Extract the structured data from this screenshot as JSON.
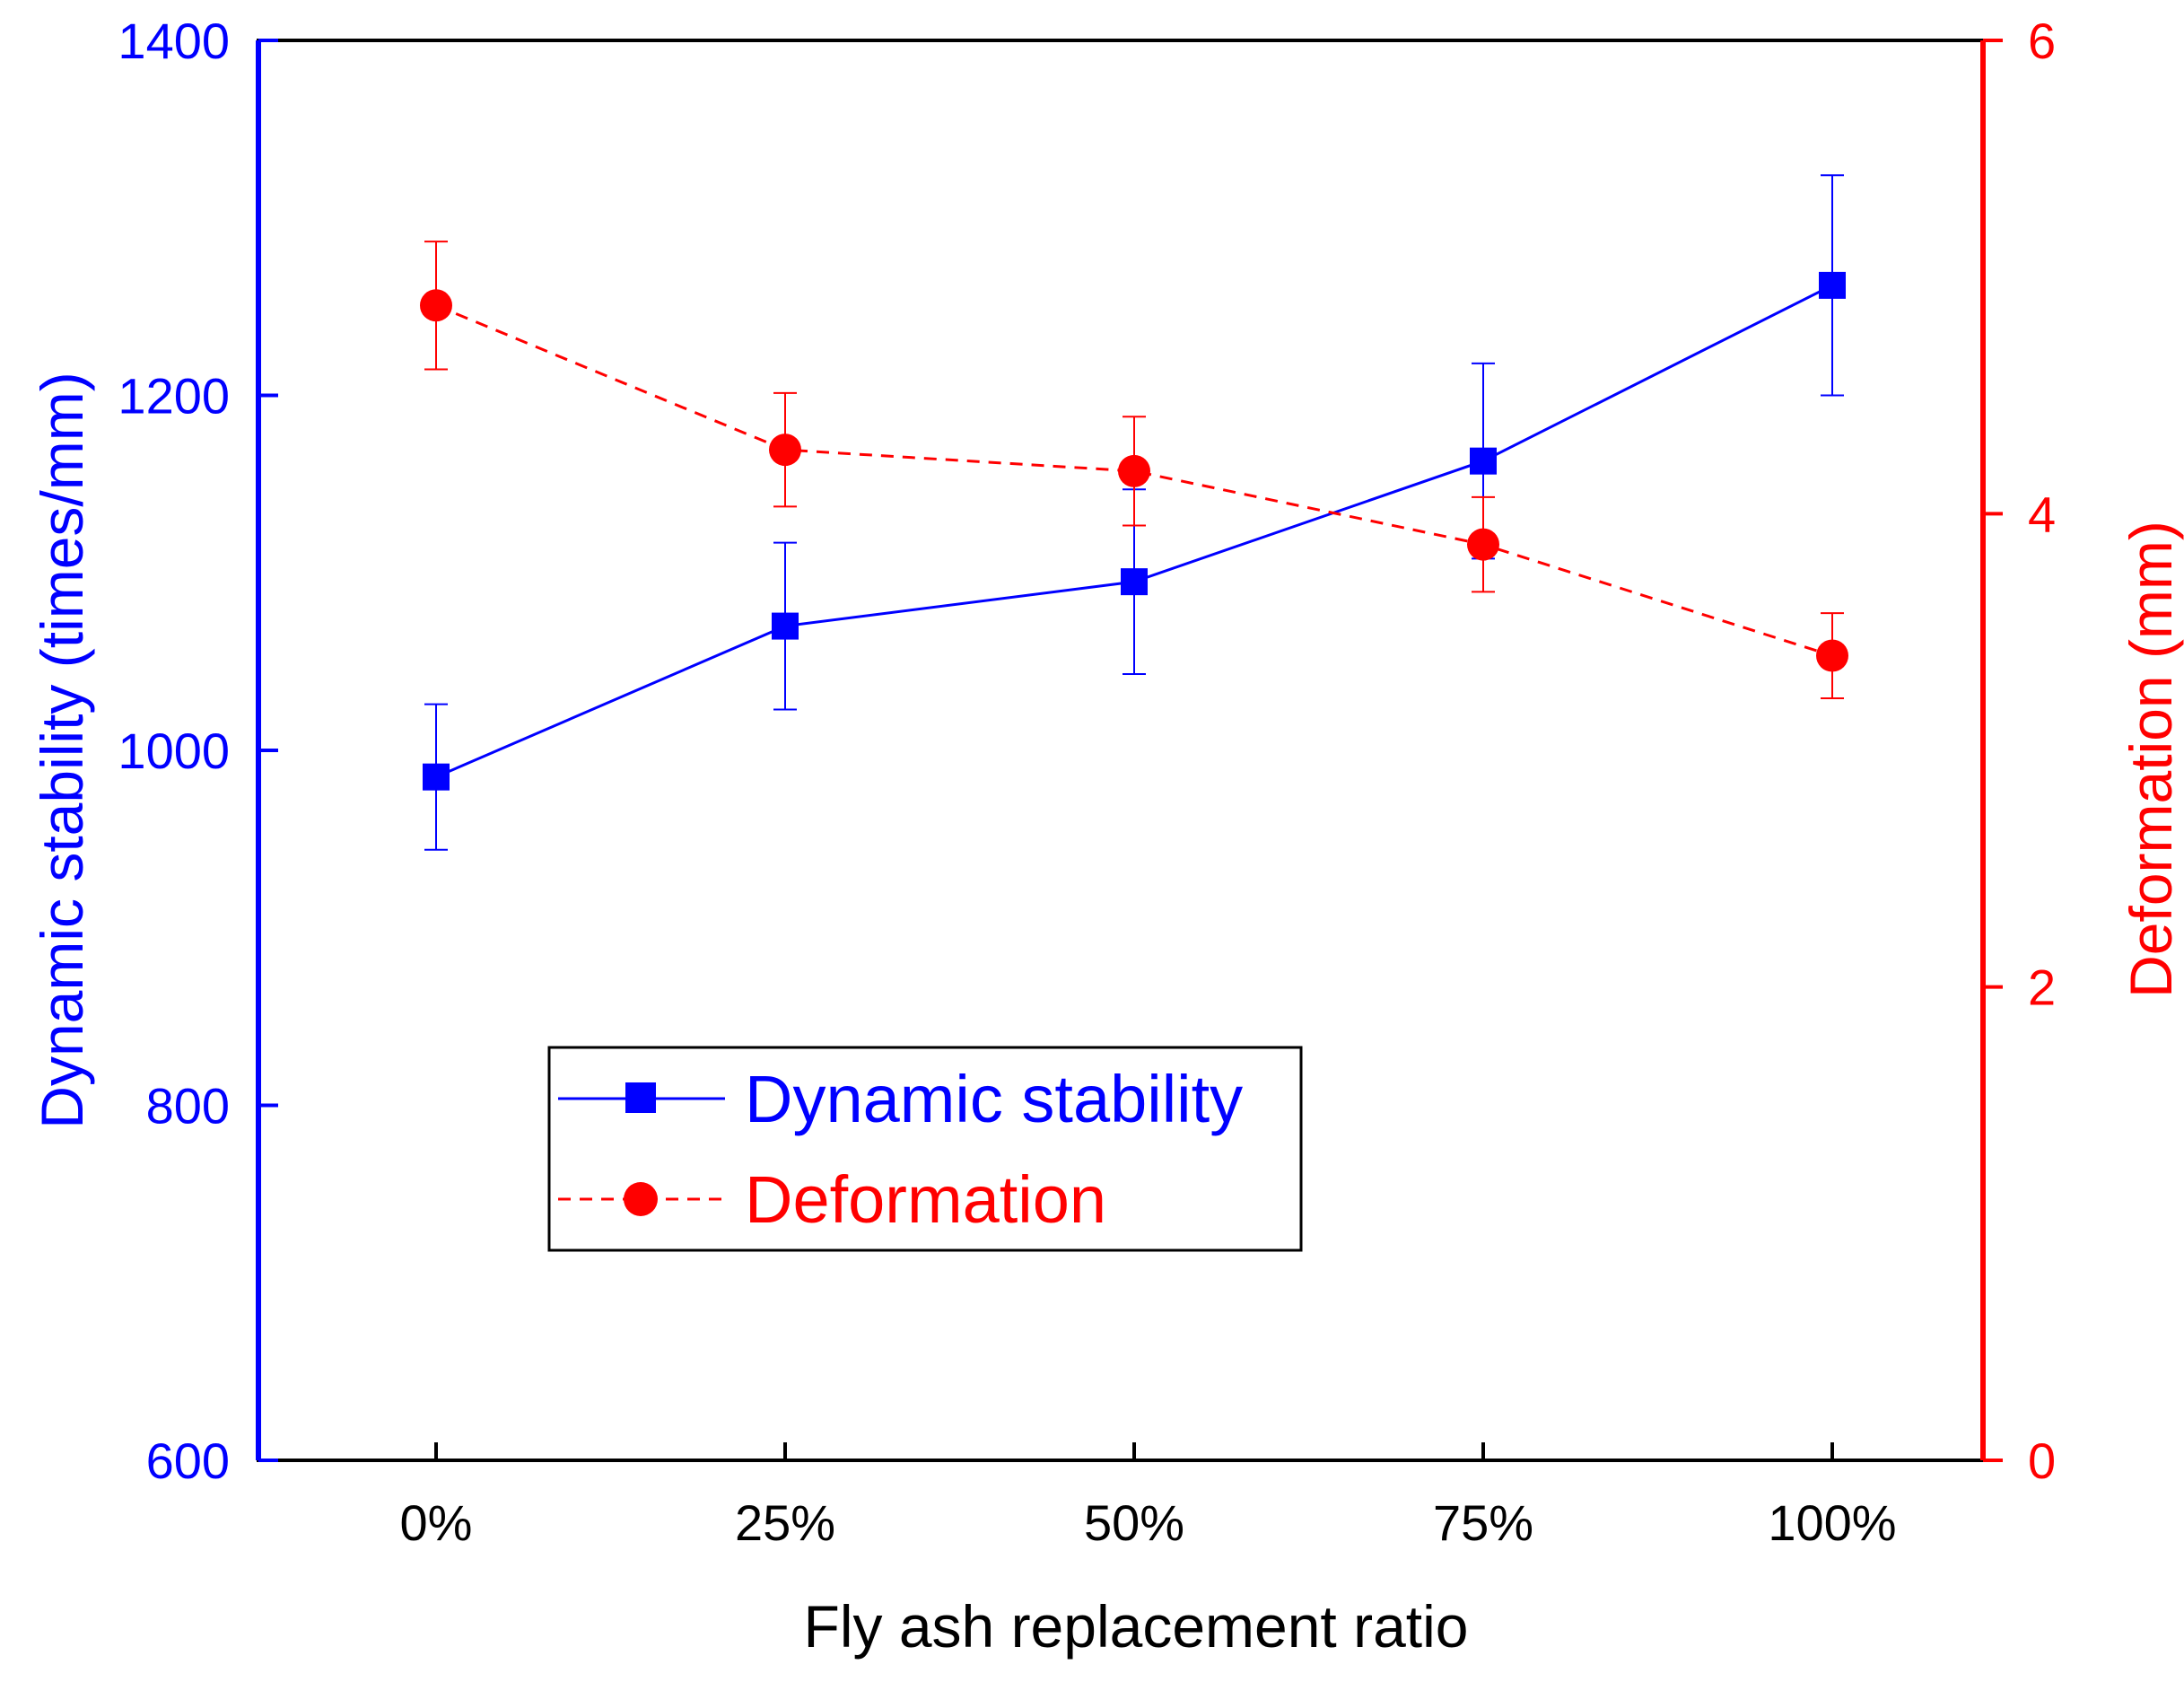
{
  "chart_data": {
    "type": "line",
    "categories": [
      "0%",
      "25%",
      "50%",
      "75%",
      "100%"
    ],
    "xlabel": "Fly ash replacement ratio",
    "y_left": {
      "label": "Dynamic stability (times/mm)",
      "range": [
        600,
        1400
      ],
      "ticks": [
        600,
        800,
        1000,
        1200,
        1400
      ],
      "tick_labels": [
        "600",
        "800",
        "1000",
        "1200",
        "1400"
      ],
      "color": "#0000ff"
    },
    "y_right": {
      "label": "Deformation (mm)",
      "range": [
        0,
        6
      ],
      "ticks": [
        0,
        2,
        4,
        6
      ],
      "tick_labels": [
        "0",
        "2",
        "4",
        "6"
      ],
      "color": "#ff0000"
    },
    "series": [
      {
        "name": "Dynamic stability",
        "axis": "left",
        "marker": "square",
        "line": "solid",
        "color": "#0000ff",
        "values": [
          985,
          1070,
          1095,
          1163,
          1262
        ],
        "error": [
          41,
          47,
          52,
          55,
          62
        ]
      },
      {
        "name": "Deformation",
        "axis": "right",
        "marker": "circle",
        "line": "dashed",
        "color": "#ff0000",
        "values": [
          4.88,
          4.27,
          4.18,
          3.87,
          3.4
        ],
        "error": [
          0.27,
          0.24,
          0.23,
          0.2,
          0.18
        ]
      }
    ],
    "legend_position": "lower-left inside plot",
    "grid": false
  }
}
